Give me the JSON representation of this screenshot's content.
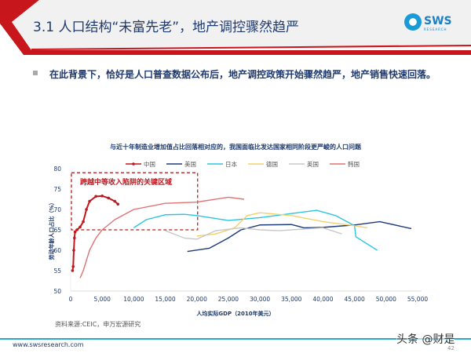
{
  "slide": {
    "title": "3.1 人口结构“未富先老”，地产调控骤然趋严",
    "bullet": "在此背景下，恰好是人口普查数据公布后，地产调控政策开始骤然趋严，地产销售快速回落。",
    "logo_text": "SWS",
    "logo_sub": "RESEARCH",
    "source": "资料来源:CEIC，申万宏源研究",
    "url": "www.swsresearch.com",
    "watermark": "头条 @财是",
    "page": "42"
  },
  "colors": {
    "header_red": "#c8161d",
    "title_blue": "#1f3a6e",
    "footer_line": "#2fa6cc"
  },
  "chart_data": {
    "type": "line",
    "title": "与近十年制造业增加值占比回落相对应的，我国面临比发达国家相同阶段更严峻的人口问题",
    "xlabel": "人均实际GDP（2010年美元）",
    "ylabel": "劳动年龄人口占比（%）",
    "xlim": [
      0,
      55000
    ],
    "ylim": [
      50,
      80
    ],
    "xticks": [
      "0",
      "5,000",
      "10,000",
      "15,000",
      "20,000",
      "25,000",
      "30,000",
      "35,000",
      "40,000",
      "45,000",
      "50,000",
      "55,000"
    ],
    "yticks": [
      "50",
      "55",
      "60",
      "65",
      "70",
      "75",
      "80"
    ],
    "grid": false,
    "legend": "top",
    "annotation": {
      "text": "跨越中等收入陷阱的关键区域",
      "x_range": [
        0,
        20000
      ],
      "y_range": [
        65,
        79
      ]
    },
    "series": [
      {
        "name": "中国",
        "color": "#c0171d",
        "markers": true,
        "points": [
          [
            300,
            55
          ],
          [
            400,
            56
          ],
          [
            500,
            60
          ],
          [
            600,
            63
          ],
          [
            700,
            64.5
          ],
          [
            1000,
            65
          ],
          [
            1500,
            65.7
          ],
          [
            2000,
            67
          ],
          [
            2500,
            70
          ],
          [
            3000,
            72
          ],
          [
            4000,
            73.2
          ],
          [
            5000,
            73.3
          ],
          [
            6000,
            72.8
          ],
          [
            7000,
            72
          ],
          [
            7500,
            71.3
          ]
        ]
      },
      {
        "name": "美国",
        "color": "#1d3a7a",
        "points": [
          [
            18500,
            59.7
          ],
          [
            22000,
            60.5
          ],
          [
            25000,
            63
          ],
          [
            27000,
            65
          ],
          [
            30000,
            66.2
          ],
          [
            35000,
            66.3
          ],
          [
            37000,
            65.5
          ],
          [
            40000,
            65.6
          ],
          [
            45000,
            66.2
          ],
          [
            49000,
            67
          ],
          [
            54000,
            65.3
          ]
        ]
      },
      {
        "name": "日本",
        "color": "#2ec4e0",
        "points": [
          [
            10000,
            65.5
          ],
          [
            12000,
            67.5
          ],
          [
            15000,
            68.7
          ],
          [
            18000,
            68.8
          ],
          [
            20000,
            68.5
          ],
          [
            25000,
            67.3
          ],
          [
            30000,
            68
          ],
          [
            35000,
            69
          ],
          [
            39000,
            69.8
          ],
          [
            42000,
            68.5
          ],
          [
            45000,
            66
          ],
          [
            45200,
            63.3
          ],
          [
            48600,
            60
          ]
        ]
      },
      {
        "name": "德国",
        "color": "#f2d06b",
        "points": [
          [
            20000,
            63.5
          ],
          [
            23000,
            64
          ],
          [
            26000,
            65.5
          ],
          [
            28000,
            68.5
          ],
          [
            30000,
            69.2
          ],
          [
            35000,
            68.5
          ],
          [
            40000,
            67
          ],
          [
            45000,
            66
          ],
          [
            47000,
            65.5
          ]
        ]
      },
      {
        "name": "英国",
        "color": "#c8c8c8",
        "points": [
          [
            15000,
            64.8
          ],
          [
            18000,
            63
          ],
          [
            20000,
            62.7
          ],
          [
            23000,
            64.8
          ],
          [
            27000,
            65.5
          ],
          [
            30000,
            65
          ],
          [
            33000,
            64.8
          ],
          [
            37000,
            65.2
          ],
          [
            40000,
            65.5
          ],
          [
            43000,
            64
          ]
        ]
      },
      {
        "name": "韩国",
        "color": "#e07272",
        "points": [
          [
            1500,
            53.2
          ],
          [
            2000,
            55
          ],
          [
            3000,
            60
          ],
          [
            4000,
            63
          ],
          [
            5000,
            65
          ],
          [
            7000,
            67.5
          ],
          [
            10000,
            70
          ],
          [
            15000,
            71.5
          ],
          [
            20000,
            71.8
          ],
          [
            25000,
            73
          ],
          [
            27500,
            72.5
          ]
        ]
      }
    ]
  }
}
